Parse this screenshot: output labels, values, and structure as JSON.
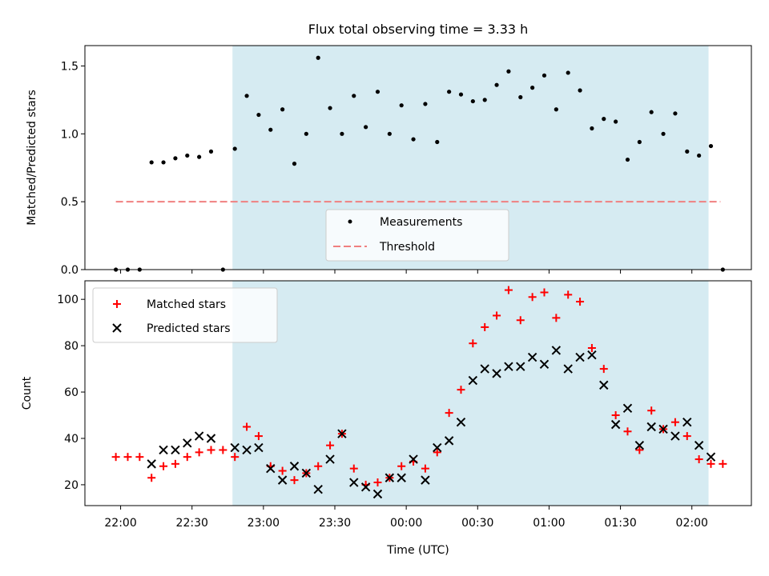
{
  "chart_data": [
    {
      "type": "scatter",
      "title": "Flux total observing time = 3.33 h",
      "ylabel": "Matched/Predicted stars",
      "ylim": [
        0,
        1.65
      ],
      "y_ticks": [
        0.0,
        0.5,
        1.0,
        1.5
      ],
      "y_tick_labels": [
        "0.0",
        "0.5",
        "1.0",
        "1.5"
      ],
      "shaded_region": {
        "start_min": 47,
        "end_min": 247,
        "color": "#add8e6"
      },
      "legend": {
        "position": "lower-center",
        "entries": [
          "Measurements",
          "Threshold"
        ]
      },
      "threshold": {
        "name": "Threshold",
        "value": 0.5,
        "x_start_min": -2,
        "x_end_min": 252,
        "color": "#f08080"
      },
      "series": [
        {
          "name": "Measurements",
          "marker": "dot",
          "color": "#000000",
          "x_min": [
            -2,
            3,
            8,
            13,
            18,
            23,
            28,
            33,
            38,
            43,
            48,
            53,
            58,
            63,
            68,
            73,
            78,
            83,
            88,
            93,
            98,
            103,
            108,
            113,
            118,
            123,
            128,
            133,
            138,
            143,
            148,
            153,
            158,
            163,
            168,
            173,
            178,
            183,
            188,
            193,
            198,
            203,
            208,
            213,
            218,
            223,
            228,
            233,
            238,
            243,
            248,
            253
          ],
          "y": [
            0.0,
            0.0,
            0.0,
            0.79,
            0.79,
            0.82,
            0.84,
            0.83,
            0.87,
            0.0,
            0.89,
            1.28,
            1.14,
            1.03,
            1.18,
            0.78,
            1.0,
            1.56,
            1.19,
            1.0,
            1.28,
            1.05,
            1.31,
            1.0,
            1.21,
            0.96,
            1.22,
            0.94,
            1.31,
            1.29,
            1.24,
            1.25,
            1.36,
            1.46,
            1.27,
            1.34,
            1.43,
            1.18,
            1.45,
            1.32,
            1.04,
            1.11,
            1.09,
            0.81,
            0.94,
            1.16,
            1.0,
            1.15,
            0.87,
            0.84,
            0.91,
            0.0
          ]
        }
      ]
    },
    {
      "type": "scatter",
      "xlabel": "Time (UTC)",
      "ylabel": "Count",
      "ylim": [
        11,
        108
      ],
      "y_ticks": [
        20,
        40,
        60,
        80,
        100
      ],
      "xlim_min": [
        -15,
        265
      ],
      "x_ticks_min": [
        0,
        30,
        60,
        90,
        120,
        150,
        180,
        210,
        240
      ],
      "x_tick_labels": [
        "22:00",
        "22:30",
        "23:00",
        "23:30",
        "00:00",
        "00:30",
        "01:00",
        "01:30",
        "02:00"
      ],
      "shaded_region": {
        "start_min": 47,
        "end_min": 247,
        "color": "#add8e6"
      },
      "legend": {
        "position": "top-left",
        "entries": [
          "Matched stars",
          "Predicted stars"
        ]
      },
      "series": [
        {
          "name": "Matched stars",
          "marker": "plus",
          "color": "#ff0000",
          "x_min": [
            -2,
            3,
            8,
            13,
            18,
            23,
            28,
            33,
            38,
            43,
            48,
            53,
            58,
            63,
            68,
            73,
            78,
            83,
            88,
            93,
            98,
            103,
            108,
            113,
            118,
            123,
            128,
            133,
            138,
            143,
            148,
            153,
            158,
            163,
            168,
            173,
            178,
            183,
            188,
            193,
            198,
            203,
            208,
            213,
            218,
            223,
            228,
            233,
            238,
            243,
            248,
            253
          ],
          "y": [
            32,
            32,
            32,
            23,
            28,
            29,
            32,
            34,
            35,
            35,
            32,
            45,
            41,
            28,
            26,
            22,
            25,
            28,
            37,
            42,
            27,
            20,
            21,
            23,
            28,
            30,
            27,
            34,
            51,
            61,
            81,
            88,
            93,
            104,
            91,
            101,
            103,
            92,
            102,
            99,
            79,
            70,
            50,
            43,
            35,
            52,
            44,
            47,
            41,
            31,
            29,
            29
          ]
        },
        {
          "name": "Predicted stars",
          "marker": "x",
          "color": "#000000",
          "x_min": [
            13,
            18,
            23,
            28,
            33,
            38,
            48,
            53,
            58,
            63,
            68,
            73,
            78,
            83,
            88,
            93,
            98,
            103,
            108,
            113,
            118,
            123,
            128,
            133,
            138,
            143,
            148,
            153,
            158,
            163,
            168,
            173,
            178,
            183,
            188,
            193,
            198,
            203,
            208,
            213,
            218,
            223,
            228,
            233,
            238,
            243,
            248
          ],
          "y": [
            29,
            35,
            35,
            38,
            41,
            40,
            36,
            35,
            36,
            27,
            22,
            28,
            25,
            18,
            31,
            42,
            21,
            19,
            16,
            23,
            23,
            31,
            22,
            36,
            39,
            47,
            65,
            70,
            68,
            71,
            71,
            75,
            72,
            78,
            70,
            75,
            76,
            63,
            46,
            53,
            37,
            45,
            44,
            41,
            47,
            37,
            32
          ]
        }
      ]
    }
  ]
}
